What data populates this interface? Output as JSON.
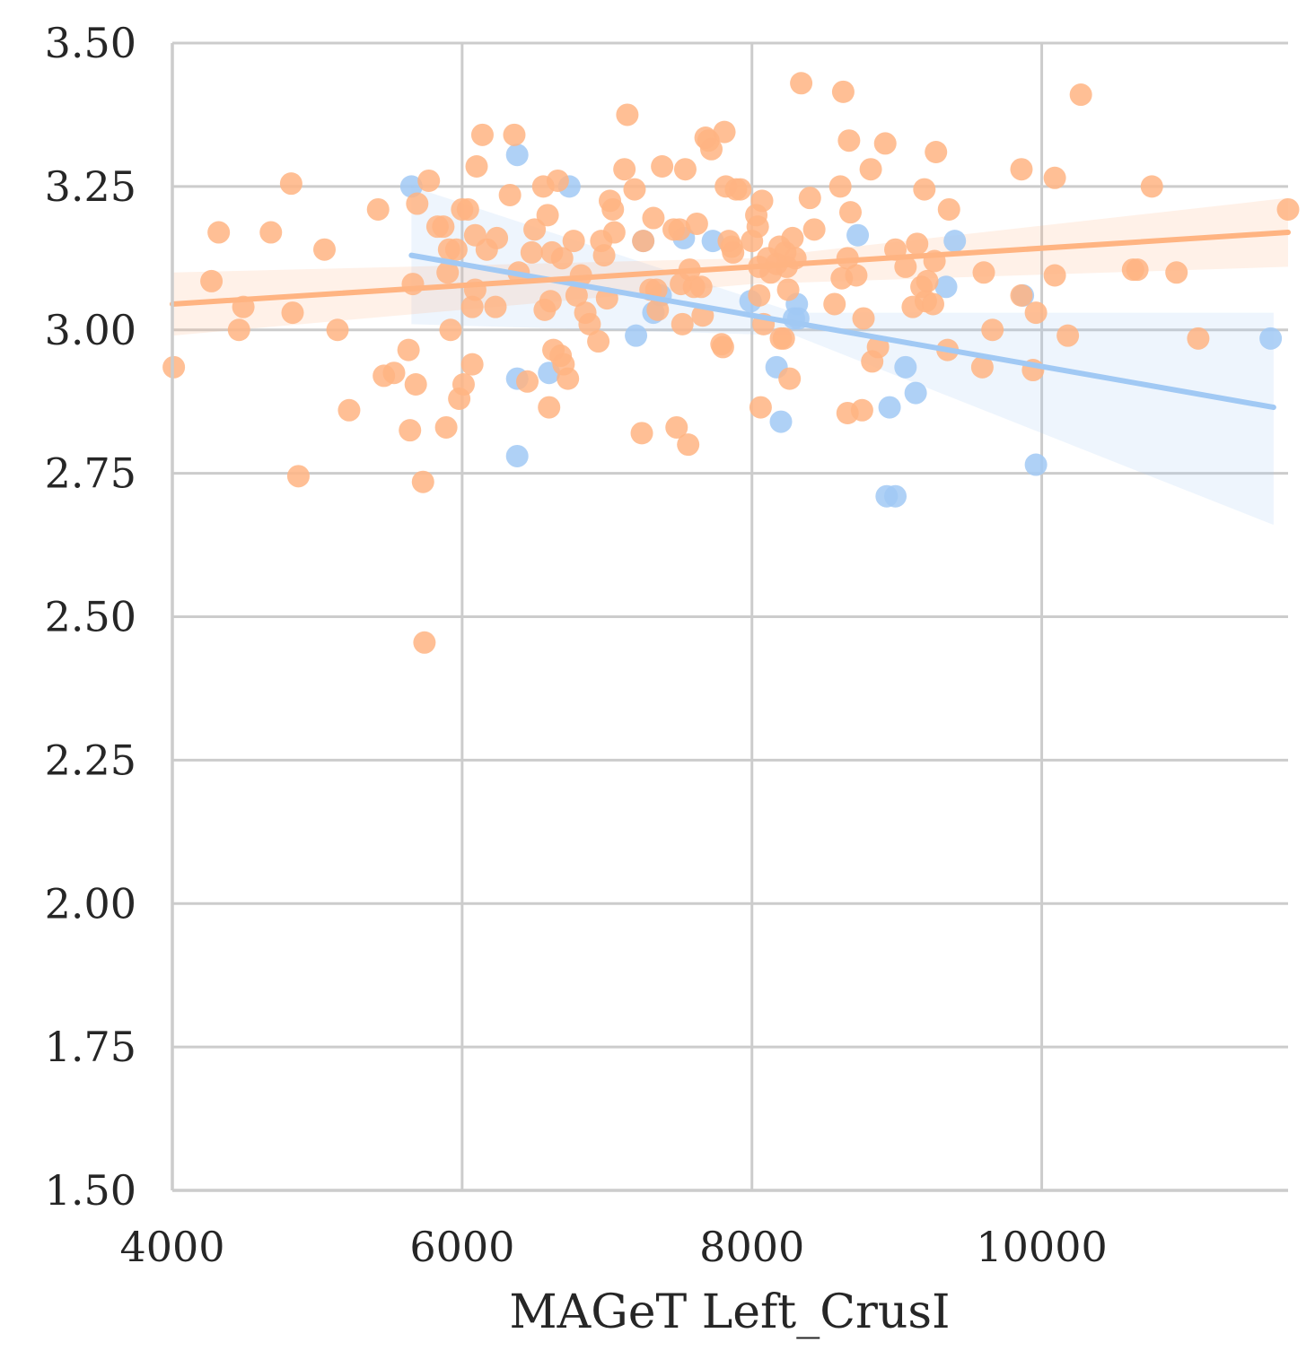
{
  "chart_data": {
    "type": "scatter",
    "xlabel": "MAGeT Left_CrusI",
    "ylabel": "",
    "xlim": [
      4000,
      11700
    ],
    "ylim": [
      1.5,
      3.5
    ],
    "xticks": [
      4000,
      6000,
      8000,
      10000
    ],
    "yticks": [
      1.5,
      1.75,
      2.0,
      2.25,
      2.5,
      2.75,
      3.0,
      3.25,
      3.5
    ],
    "xtick_labels": [
      "4000",
      "6000",
      "8000",
      "10000"
    ],
    "ytick_labels": [
      "1.50",
      "1.75",
      "2.00",
      "2.25",
      "2.50",
      "2.75",
      "3.00",
      "3.25",
      "3.50"
    ],
    "grid": true,
    "series": [
      {
        "color": "#a1c9f4",
        "regression": {
          "x": [
            5650,
            11600
          ],
          "y": [
            3.13,
            2.865
          ]
        },
        "ci": {
          "x": [
            5650,
            8300,
            11600
          ],
          "lower": [
            3.01,
            2.99,
            2.66
          ],
          "upper": [
            3.25,
            3.03,
            3.03
          ]
        },
        "points": [
          [
            5650,
            3.25
          ],
          [
            6380,
            3.305
          ],
          [
            6380,
            2.915
          ],
          [
            6380,
            2.78
          ],
          [
            6600,
            2.925
          ],
          [
            6740,
            3.25
          ],
          [
            7200,
            2.99
          ],
          [
            7250,
            3.155
          ],
          [
            7320,
            3.03
          ],
          [
            7370,
            3.06
          ],
          [
            7530,
            3.16
          ],
          [
            7730,
            3.155
          ],
          [
            7990,
            3.05
          ],
          [
            8170,
            2.935
          ],
          [
            8200,
            2.84
          ],
          [
            8290,
            3.02
          ],
          [
            8310,
            3.045
          ],
          [
            8320,
            3.02
          ],
          [
            8730,
            3.165
          ],
          [
            8930,
            2.71
          ],
          [
            8950,
            2.865
          ],
          [
            8990,
            2.71
          ],
          [
            9060,
            2.935
          ],
          [
            9130,
            2.89
          ],
          [
            9340,
            3.075
          ],
          [
            9400,
            3.155
          ],
          [
            9870,
            3.06
          ],
          [
            9960,
            2.765
          ],
          [
            11580,
            2.985
          ]
        ]
      },
      {
        "color": "#ffb482",
        "regression": {
          "x": [
            4000,
            11700
          ],
          "y": [
            3.045,
            3.17
          ]
        },
        "ci": {
          "x": [
            4000,
            8000,
            11700
          ],
          "lower": [
            2.99,
            3.08,
            3.11
          ],
          "upper": [
            3.1,
            3.125,
            3.23
          ]
        },
        "points": [
          [
            4010,
            2.935
          ],
          [
            4270,
            3.085
          ],
          [
            4320,
            3.17
          ],
          [
            4460,
            3.0
          ],
          [
            4490,
            3.04
          ],
          [
            4680,
            3.17
          ],
          [
            4820,
            3.255
          ],
          [
            4830,
            3.03
          ],
          [
            4870,
            2.745
          ],
          [
            5050,
            3.14
          ],
          [
            5140,
            3.0
          ],
          [
            5220,
            2.86
          ],
          [
            5420,
            3.21
          ],
          [
            5460,
            2.92
          ],
          [
            5530,
            2.925
          ],
          [
            5630,
            2.965
          ],
          [
            5640,
            2.825
          ],
          [
            5660,
            3.08
          ],
          [
            5680,
            2.905
          ],
          [
            5690,
            3.22
          ],
          [
            5730,
            2.735
          ],
          [
            5740,
            2.455
          ],
          [
            5770,
            3.26
          ],
          [
            5830,
            3.18
          ],
          [
            5870,
            3.18
          ],
          [
            5890,
            2.83
          ],
          [
            5900,
            3.1
          ],
          [
            5910,
            3.14
          ],
          [
            5920,
            3.0
          ],
          [
            5960,
            3.14
          ],
          [
            5980,
            2.88
          ],
          [
            6000,
            3.21
          ],
          [
            6010,
            2.905
          ],
          [
            6040,
            3.21
          ],
          [
            6070,
            2.94
          ],
          [
            6070,
            3.04
          ],
          [
            6090,
            3.165
          ],
          [
            6090,
            3.07
          ],
          [
            6100,
            3.285
          ],
          [
            6140,
            3.34
          ],
          [
            6170,
            3.14
          ],
          [
            6230,
            3.04
          ],
          [
            6240,
            3.16
          ],
          [
            6330,
            3.235
          ],
          [
            6360,
            3.34
          ],
          [
            6390,
            3.1
          ],
          [
            6450,
            2.91
          ],
          [
            6480,
            3.135
          ],
          [
            6500,
            3.175
          ],
          [
            6560,
            3.25
          ],
          [
            6570,
            3.035
          ],
          [
            6590,
            3.2
          ],
          [
            6600,
            2.865
          ],
          [
            6610,
            3.05
          ],
          [
            6620,
            3.135
          ],
          [
            6630,
            2.965
          ],
          [
            6660,
            3.26
          ],
          [
            6680,
            2.955
          ],
          [
            6690,
            3.125
          ],
          [
            6700,
            2.94
          ],
          [
            6730,
            2.915
          ],
          [
            6770,
            3.155
          ],
          [
            6790,
            3.06
          ],
          [
            6820,
            3.095
          ],
          [
            6850,
            3.03
          ],
          [
            6880,
            3.01
          ],
          [
            6940,
            2.98
          ],
          [
            6960,
            3.155
          ],
          [
            6980,
            3.13
          ],
          [
            7000,
            3.055
          ],
          [
            7020,
            3.225
          ],
          [
            7040,
            3.21
          ],
          [
            7050,
            3.17
          ],
          [
            7120,
            3.28
          ],
          [
            7140,
            3.375
          ],
          [
            7190,
            3.245
          ],
          [
            7240,
            2.82
          ],
          [
            7250,
            3.155
          ],
          [
            7300,
            3.07
          ],
          [
            7320,
            3.195
          ],
          [
            7340,
            3.07
          ],
          [
            7350,
            3.035
          ],
          [
            7380,
            3.285
          ],
          [
            7460,
            3.175
          ],
          [
            7480,
            2.83
          ],
          [
            7500,
            3.175
          ],
          [
            7510,
            3.08
          ],
          [
            7520,
            3.01
          ],
          [
            7540,
            3.28
          ],
          [
            7560,
            2.8
          ],
          [
            7570,
            3.105
          ],
          [
            7600,
            3.075
          ],
          [
            7620,
            3.185
          ],
          [
            7650,
            3.075
          ],
          [
            7660,
            3.025
          ],
          [
            7680,
            3.335
          ],
          [
            7700,
            3.33
          ],
          [
            7720,
            3.315
          ],
          [
            7790,
            2.975
          ],
          [
            7800,
            2.97
          ],
          [
            7810,
            3.345
          ],
          [
            7820,
            3.25
          ],
          [
            7840,
            3.155
          ],
          [
            7860,
            3.145
          ],
          [
            7870,
            3.135
          ],
          [
            7890,
            3.245
          ],
          [
            7920,
            3.245
          ],
          [
            8000,
            3.155
          ],
          [
            8030,
            3.2
          ],
          [
            8040,
            3.18
          ],
          [
            8050,
            3.11
          ],
          [
            8050,
            3.06
          ],
          [
            8060,
            2.865
          ],
          [
            8070,
            3.225
          ],
          [
            8080,
            3.01
          ],
          [
            8110,
            3.125
          ],
          [
            8130,
            3.1
          ],
          [
            8170,
            3.115
          ],
          [
            8190,
            3.145
          ],
          [
            8200,
            2.985
          ],
          [
            8220,
            2.985
          ],
          [
            8230,
            3.135
          ],
          [
            8240,
            3.11
          ],
          [
            8250,
            3.07
          ],
          [
            8260,
            2.915
          ],
          [
            8280,
            3.16
          ],
          [
            8300,
            3.125
          ],
          [
            8340,
            3.43
          ],
          [
            8400,
            3.23
          ],
          [
            8430,
            3.175
          ],
          [
            8570,
            3.045
          ],
          [
            8610,
            3.25
          ],
          [
            8620,
            3.09
          ],
          [
            8630,
            3.415
          ],
          [
            8660,
            2.855
          ],
          [
            8660,
            3.125
          ],
          [
            8670,
            3.33
          ],
          [
            8680,
            3.205
          ],
          [
            8720,
            3.095
          ],
          [
            8760,
            2.86
          ],
          [
            8770,
            3.02
          ],
          [
            8820,
            3.28
          ],
          [
            8830,
            2.945
          ],
          [
            8870,
            2.97
          ],
          [
            8920,
            3.325
          ],
          [
            8990,
            3.14
          ],
          [
            9060,
            3.11
          ],
          [
            9110,
            3.04
          ],
          [
            9140,
            3.15
          ],
          [
            9170,
            3.075
          ],
          [
            9190,
            3.245
          ],
          [
            9200,
            3.05
          ],
          [
            9210,
            3.085
          ],
          [
            9250,
            3.045
          ],
          [
            9260,
            3.12
          ],
          [
            9270,
            3.31
          ],
          [
            9350,
            2.965
          ],
          [
            9360,
            3.21
          ],
          [
            9590,
            2.935
          ],
          [
            9600,
            3.1
          ],
          [
            9660,
            3.0
          ],
          [
            9860,
            3.06
          ],
          [
            9860,
            3.28
          ],
          [
            9940,
            2.93
          ],
          [
            9960,
            3.03
          ],
          [
            10090,
            3.095
          ],
          [
            10090,
            3.265
          ],
          [
            10180,
            2.99
          ],
          [
            10270,
            3.41
          ],
          [
            10630,
            3.105
          ],
          [
            10660,
            3.105
          ],
          [
            10760,
            3.25
          ],
          [
            10930,
            3.1
          ],
          [
            11080,
            2.985
          ],
          [
            11700,
            3.21
          ]
        ]
      }
    ]
  }
}
